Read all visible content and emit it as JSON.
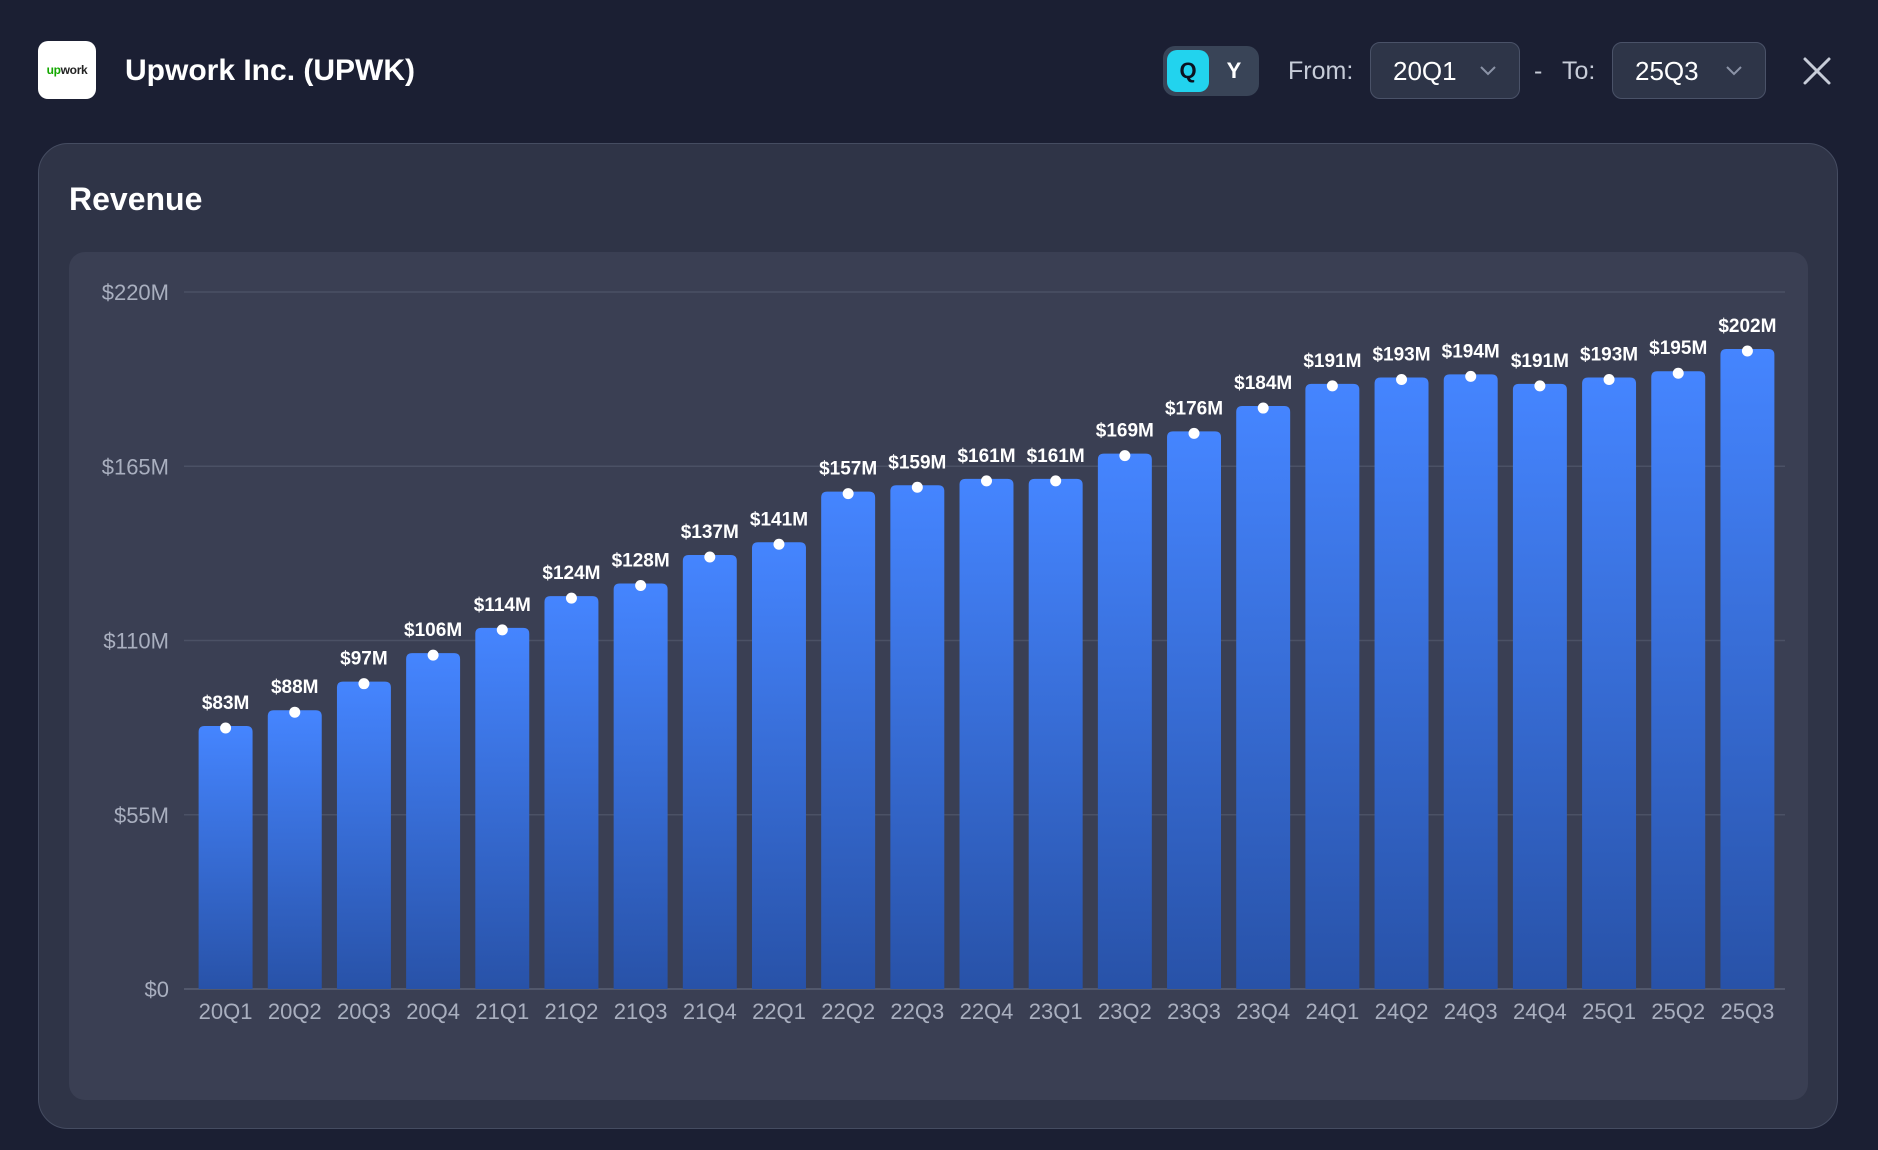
{
  "header": {
    "logo_text_a": "up",
    "logo_text_b": "work",
    "title": "Upwork Inc. (UPWK)",
    "toggle": {
      "q": "Q",
      "y": "Y",
      "selected": "Q"
    },
    "from_label": "From:",
    "from_value": "20Q1",
    "separator": "-",
    "to_label": "To:",
    "to_value": "25Q3",
    "close_icon": "close-icon"
  },
  "colors": {
    "background": "#1b1f33",
    "card": "#2f3447",
    "panel": "#3a3f53",
    "bar_top": "#4585ff",
    "bar_bottom": "#2852a8",
    "accent": "#22d3ee"
  },
  "chart_data": {
    "type": "bar",
    "title": "Revenue",
    "categories": [
      "20Q1",
      "20Q2",
      "20Q3",
      "20Q4",
      "21Q1",
      "21Q2",
      "21Q3",
      "21Q4",
      "22Q1",
      "22Q2",
      "22Q3",
      "22Q4",
      "23Q1",
      "23Q2",
      "23Q3",
      "23Q4",
      "24Q1",
      "24Q2",
      "24Q3",
      "24Q4",
      "25Q1",
      "25Q2",
      "25Q3"
    ],
    "values": [
      83,
      88,
      97,
      106,
      114,
      124,
      128,
      137,
      141,
      157,
      159,
      161,
      161,
      169,
      176,
      184,
      191,
      193,
      194,
      191,
      193,
      195,
      202
    ],
    "data_labels": [
      "$83M",
      "$88M",
      "$97M",
      "$106M",
      "$114M",
      "$124M",
      "$128M",
      "$137M",
      "$141M",
      "$157M",
      "$159M",
      "$161M",
      "$161M",
      "$169M",
      "$176M",
      "$184M",
      "$191M",
      "$193M",
      "$194M",
      "$191M",
      "$193M",
      "$195M",
      "$202M"
    ],
    "unit": "M",
    "ylim": [
      0,
      220
    ],
    "yticks": [
      0,
      55,
      110,
      165,
      220
    ],
    "ytick_labels": [
      "$0",
      "$55M",
      "$110M",
      "$165M",
      "$220M"
    ],
    "grid": true,
    "legend": "none"
  }
}
